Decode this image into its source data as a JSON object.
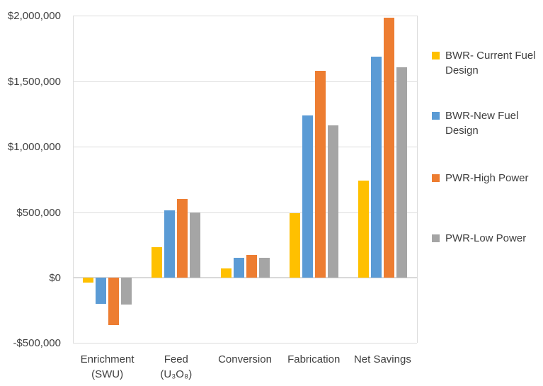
{
  "chart_data": {
    "type": "bar",
    "title": "",
    "xlabel": "",
    "ylabel": "",
    "categories": [
      "Enrichment (SWU)",
      "Feed (U₃O₈)",
      "Conversion",
      "Fabrication",
      "Net Savings"
    ],
    "category_lines": [
      [
        "Enrichment",
        "(SWU)"
      ],
      [
        "Feed",
        "(U₃O₈)"
      ],
      [
        "Conversion"
      ],
      [
        "Fabrication"
      ],
      [
        "Net Savings"
      ]
    ],
    "series": [
      {
        "name": "BWR- Current Fuel Design",
        "color": "#FFC000",
        "values": [
          -40000,
          230000,
          70000,
          495000,
          740000
        ]
      },
      {
        "name": "BWR-New Fuel Design",
        "color": "#5B9BD5",
        "values": [
          -200000,
          515000,
          150000,
          1240000,
          1690000
        ]
      },
      {
        "name": "PWR-High Power",
        "color": "#ED7D31",
        "values": [
          -360000,
          600000,
          175000,
          1580000,
          1985000
        ]
      },
      {
        "name": "PWR-Low Power",
        "color": "#A5A5A5",
        "values": [
          -205000,
          500000,
          150000,
          1165000,
          1605000
        ]
      }
    ],
    "ylim": [
      -500000,
      2000000
    ],
    "yticks": [
      {
        "value": 2000000,
        "label": "$2,000,000"
      },
      {
        "value": 1500000,
        "label": "$1,500,000"
      },
      {
        "value": 1000000,
        "label": "$1,000,000"
      },
      {
        "value": 500000,
        "label": "$500,000"
      },
      {
        "value": 0,
        "label": "$0"
      },
      {
        "value": -500000,
        "label": "-$500,000"
      }
    ],
    "grid": true,
    "legend_position": "right",
    "background_color": "#FFFFFF",
    "gridline_color": "#DCDCDC",
    "text_color": "#404040"
  }
}
